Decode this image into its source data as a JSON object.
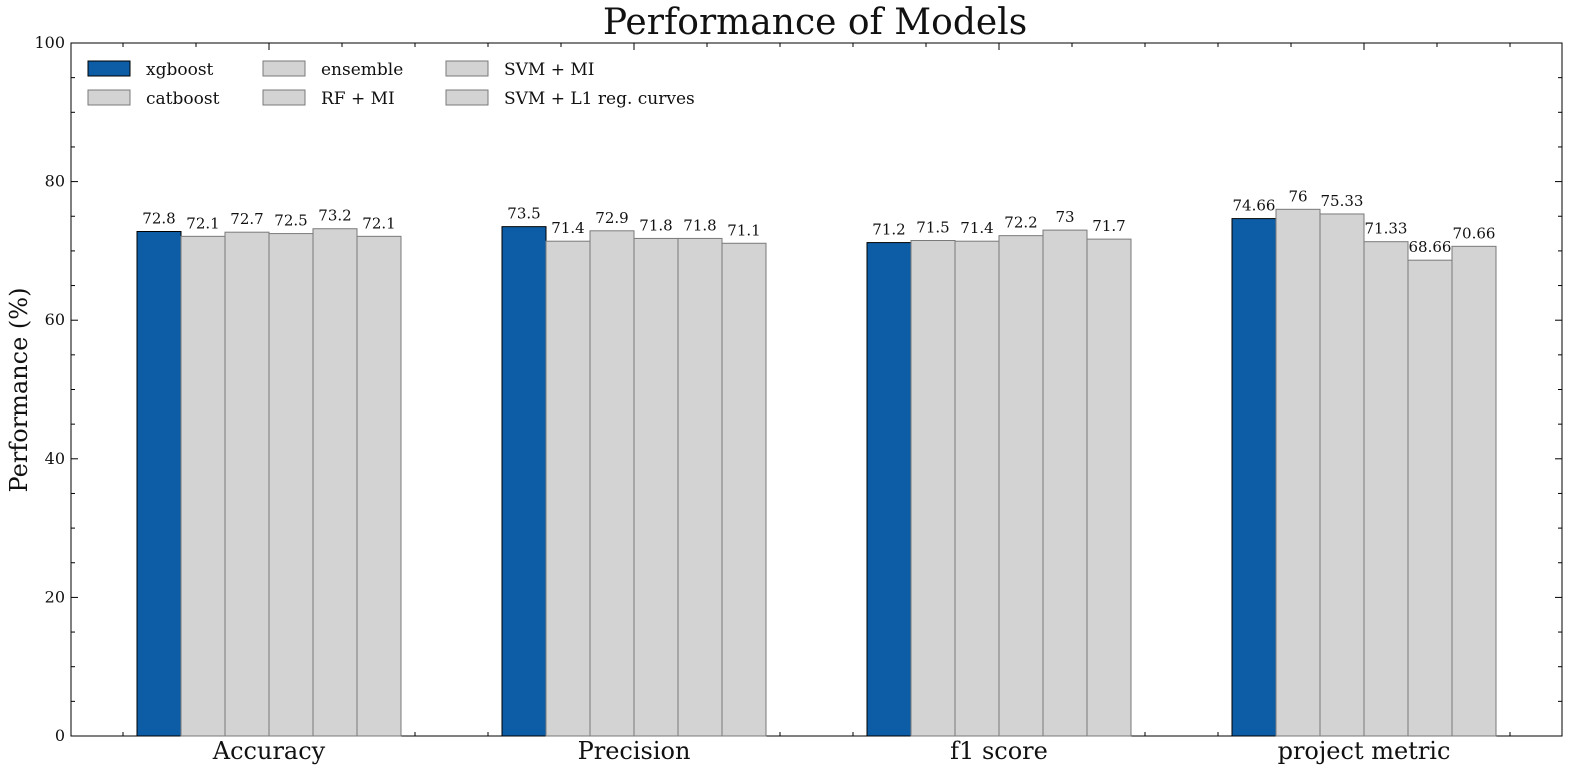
{
  "chart_data": {
    "type": "bar",
    "title": "Performance of Models",
    "xlabel": "",
    "ylabel": "Performance (%)",
    "ylim": [
      0,
      100
    ],
    "yticks": [
      0,
      20,
      40,
      60,
      80,
      100
    ],
    "grid": false,
    "legend_position": "top-left",
    "categories": [
      "Accuracy",
      "Precision",
      "f1 score",
      "project metric"
    ],
    "series": [
      {
        "name": "xgboost",
        "color": "#0c5da5",
        "values": [
          72.8,
          73.5,
          71.2,
          74.66
        ],
        "labels": [
          "72.8",
          "73.5",
          "71.2",
          "74.66"
        ]
      },
      {
        "name": "catboost",
        "color": "#d3d3d3",
        "values": [
          72.1,
          71.4,
          71.5,
          76
        ],
        "labels": [
          "72.1",
          "71.4",
          "71.5",
          "76"
        ]
      },
      {
        "name": "ensemble",
        "color": "#d3d3d3",
        "values": [
          72.7,
          72.9,
          71.4,
          75.33
        ],
        "labels": [
          "72.7",
          "72.9",
          "71.4",
          "75.33"
        ]
      },
      {
        "name": "RF + MI",
        "color": "#d3d3d3",
        "values": [
          72.5,
          71.8,
          72.2,
          71.33
        ],
        "labels": [
          "72.5",
          "71.8",
          "72.2",
          "71.33"
        ]
      },
      {
        "name": "SVM + MI",
        "color": "#d3d3d3",
        "values": [
          73.2,
          71.8,
          73,
          68.66
        ],
        "labels": [
          "73.2",
          "71.8",
          "73",
          "68.66"
        ]
      },
      {
        "name": "SVM + L1 reg. curves",
        "color": "#d3d3d3",
        "values": [
          72.1,
          71.1,
          71.7,
          70.66
        ],
        "labels": [
          "72.1",
          "71.1",
          "71.7",
          "70.66"
        ]
      }
    ]
  }
}
